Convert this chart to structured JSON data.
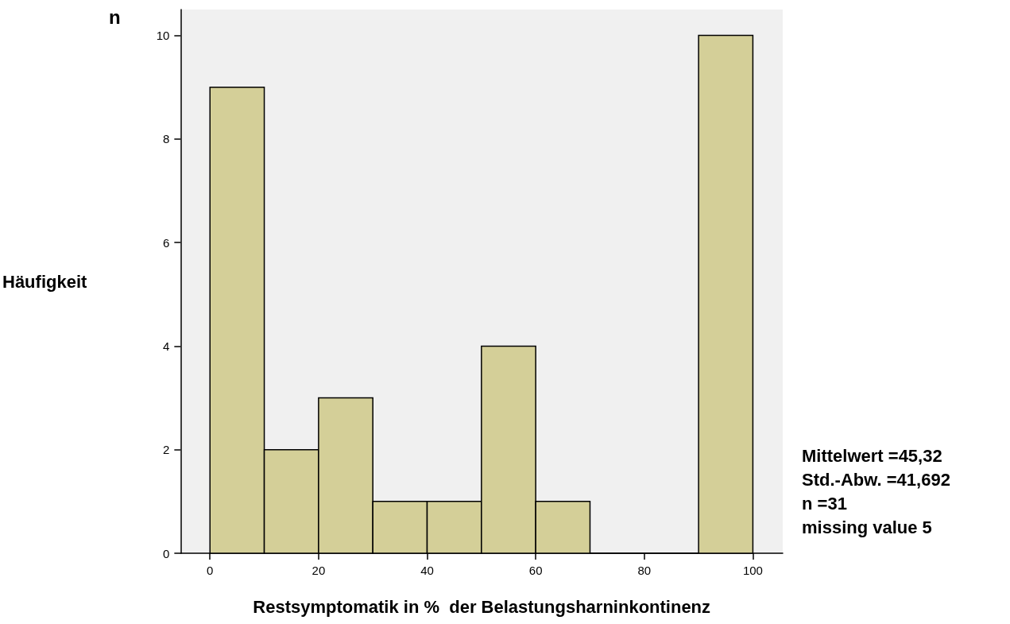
{
  "chart_data": {
    "type": "histogram",
    "title": "n",
    "xlabel": "Restsymptomatik in %  der Belastungsharninkontinenz",
    "ylabel": "Häufigkeit",
    "bins": [
      0,
      10,
      20,
      30,
      40,
      50,
      60,
      70,
      80,
      90,
      100
    ],
    "values": [
      9,
      2,
      3,
      1,
      1,
      4,
      1,
      0,
      0,
      10
    ],
    "color": "#d4cf98",
    "xlim": [
      -5.4,
      105.5
    ],
    "xticks": [
      0,
      20,
      40,
      60,
      80,
      100
    ],
    "ylim": [
      0,
      10.5
    ],
    "yticks": [
      0,
      2,
      4,
      6,
      8,
      10
    ],
    "grid": false,
    "annotations": [
      "Mittelwert =45,32",
      "Std.-Abw. =41,692",
      "n =31",
      "missing value 5"
    ]
  }
}
